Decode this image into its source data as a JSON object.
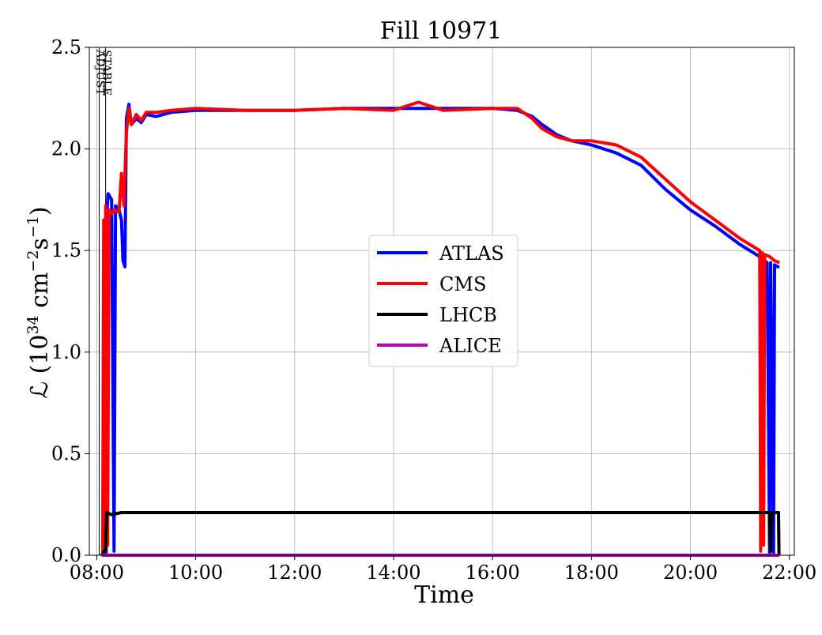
{
  "chart_data": {
    "type": "line",
    "title": "Fill 10971",
    "xlabel": "Time",
    "ylabel_prefix": "ℒ (10",
    "ylabel_exp1": "34",
    "ylabel_mid": " cm",
    "ylabel_exp2": "−2",
    "ylabel_s": "s",
    "ylabel_exp3": "−1",
    "ylabel_suffix": ")",
    "x_unit": "hours",
    "xlim": [
      7.85,
      22.1
    ],
    "ylim": [
      0.0,
      2.5
    ],
    "xticks": [
      {
        "value": 8,
        "label": "08:00"
      },
      {
        "value": 10,
        "label": "10:00"
      },
      {
        "value": 12,
        "label": "12:00"
      },
      {
        "value": 14,
        "label": "14:00"
      },
      {
        "value": 16,
        "label": "16:00"
      },
      {
        "value": 18,
        "label": "18:00"
      },
      {
        "value": 20,
        "label": "20:00"
      },
      {
        "value": 22,
        "label": "22:00"
      }
    ],
    "yticks": [
      {
        "value": 0.0,
        "label": "0.0"
      },
      {
        "value": 0.5,
        "label": "0.5"
      },
      {
        "value": 1.0,
        "label": "1.0"
      },
      {
        "value": 1.5,
        "label": "1.5"
      },
      {
        "value": 2.0,
        "label": "2.0"
      },
      {
        "value": 2.5,
        "label": "2.5"
      }
    ],
    "grid": true,
    "legend_position": "center",
    "markers": [
      {
        "label": "ADJUST",
        "x": 8.05
      },
      {
        "label": "STABLE",
        "x": 8.18
      }
    ],
    "series": [
      {
        "name": "ATLAS",
        "color": "#0000ff",
        "points": [
          [
            8.15,
            0.0
          ],
          [
            8.17,
            1.6
          ],
          [
            8.19,
            0.0
          ],
          [
            8.21,
            1.7
          ],
          [
            8.23,
            1.78
          ],
          [
            8.3,
            1.75
          ],
          [
            8.35,
            0.02
          ],
          [
            8.38,
            1.72
          ],
          [
            8.45,
            1.7
          ],
          [
            8.5,
            1.65
          ],
          [
            8.53,
            1.45
          ],
          [
            8.57,
            1.42
          ],
          [
            8.6,
            2.15
          ],
          [
            8.65,
            2.22
          ],
          [
            8.7,
            2.12
          ],
          [
            8.8,
            2.15
          ],
          [
            8.9,
            2.13
          ],
          [
            9.0,
            2.17
          ],
          [
            9.2,
            2.16
          ],
          [
            9.5,
            2.18
          ],
          [
            10.0,
            2.19
          ],
          [
            11.0,
            2.19
          ],
          [
            12.0,
            2.19
          ],
          [
            13.0,
            2.2
          ],
          [
            14.0,
            2.2
          ],
          [
            15.0,
            2.2
          ],
          [
            16.0,
            2.2
          ],
          [
            16.5,
            2.19
          ],
          [
            16.8,
            2.16
          ],
          [
            17.0,
            2.12
          ],
          [
            17.3,
            2.07
          ],
          [
            17.6,
            2.04
          ],
          [
            18.0,
            2.02
          ],
          [
            18.5,
            1.98
          ],
          [
            19.0,
            1.92
          ],
          [
            19.5,
            1.8
          ],
          [
            20.0,
            1.7
          ],
          [
            20.5,
            1.62
          ],
          [
            21.0,
            1.53
          ],
          [
            21.4,
            1.47
          ],
          [
            21.55,
            1.44
          ],
          [
            21.6,
            0.0
          ],
          [
            21.62,
            1.44
          ],
          [
            21.68,
            0.0
          ],
          [
            21.7,
            1.43
          ],
          [
            21.76,
            1.42
          ],
          [
            21.8,
            1.42
          ]
        ]
      },
      {
        "name": "CMS",
        "color": "#ff0000",
        "points": [
          [
            8.12,
            0.0
          ],
          [
            8.14,
            1.65
          ],
          [
            8.16,
            0.02
          ],
          [
            8.18,
            1.72
          ],
          [
            8.22,
            0.05
          ],
          [
            8.25,
            1.7
          ],
          [
            8.3,
            1.68
          ],
          [
            8.35,
            1.7
          ],
          [
            8.45,
            1.69
          ],
          [
            8.5,
            1.88
          ],
          [
            8.55,
            1.72
          ],
          [
            8.6,
            2.08
          ],
          [
            8.65,
            2.2
          ],
          [
            8.7,
            2.12
          ],
          [
            8.8,
            2.17
          ],
          [
            8.9,
            2.14
          ],
          [
            9.0,
            2.18
          ],
          [
            9.2,
            2.18
          ],
          [
            9.5,
            2.19
          ],
          [
            10.0,
            2.2
          ],
          [
            11.0,
            2.19
          ],
          [
            12.0,
            2.19
          ],
          [
            13.0,
            2.2
          ],
          [
            14.0,
            2.19
          ],
          [
            14.5,
            2.23
          ],
          [
            15.0,
            2.19
          ],
          [
            16.0,
            2.2
          ],
          [
            16.5,
            2.2
          ],
          [
            16.8,
            2.15
          ],
          [
            17.0,
            2.1
          ],
          [
            17.3,
            2.06
          ],
          [
            17.6,
            2.04
          ],
          [
            18.0,
            2.04
          ],
          [
            18.5,
            2.02
          ],
          [
            19.0,
            1.96
          ],
          [
            19.5,
            1.85
          ],
          [
            20.0,
            1.74
          ],
          [
            20.5,
            1.65
          ],
          [
            21.0,
            1.56
          ],
          [
            21.4,
            1.5
          ],
          [
            21.42,
            0.02
          ],
          [
            21.45,
            1.49
          ],
          [
            21.48,
            0.05
          ],
          [
            21.5,
            1.48
          ],
          [
            21.6,
            1.47
          ],
          [
            21.7,
            1.45
          ],
          [
            21.8,
            1.44
          ]
        ]
      },
      {
        "name": "LHCB",
        "color": "#000000",
        "points": [
          [
            8.1,
            0.0
          ],
          [
            8.18,
            0.03
          ],
          [
            8.2,
            0.21
          ],
          [
            8.3,
            0.2
          ],
          [
            8.5,
            0.21
          ],
          [
            9.0,
            0.21
          ],
          [
            10.0,
            0.21
          ],
          [
            11.0,
            0.21
          ],
          [
            12.0,
            0.21
          ],
          [
            13.0,
            0.21
          ],
          [
            14.0,
            0.21
          ],
          [
            15.0,
            0.21
          ],
          [
            16.0,
            0.21
          ],
          [
            17.0,
            0.21
          ],
          [
            18.0,
            0.21
          ],
          [
            19.0,
            0.21
          ],
          [
            20.0,
            0.21
          ],
          [
            21.0,
            0.21
          ],
          [
            21.5,
            0.21
          ],
          [
            21.6,
            0.21
          ],
          [
            21.62,
            0.02
          ],
          [
            21.65,
            0.21
          ],
          [
            21.78,
            0.21
          ],
          [
            21.79,
            0.0
          ]
        ]
      },
      {
        "name": "ALICE",
        "color": "#bf00bf",
        "points": [
          [
            8.1,
            0.0
          ],
          [
            21.8,
            0.0
          ]
        ]
      }
    ]
  }
}
